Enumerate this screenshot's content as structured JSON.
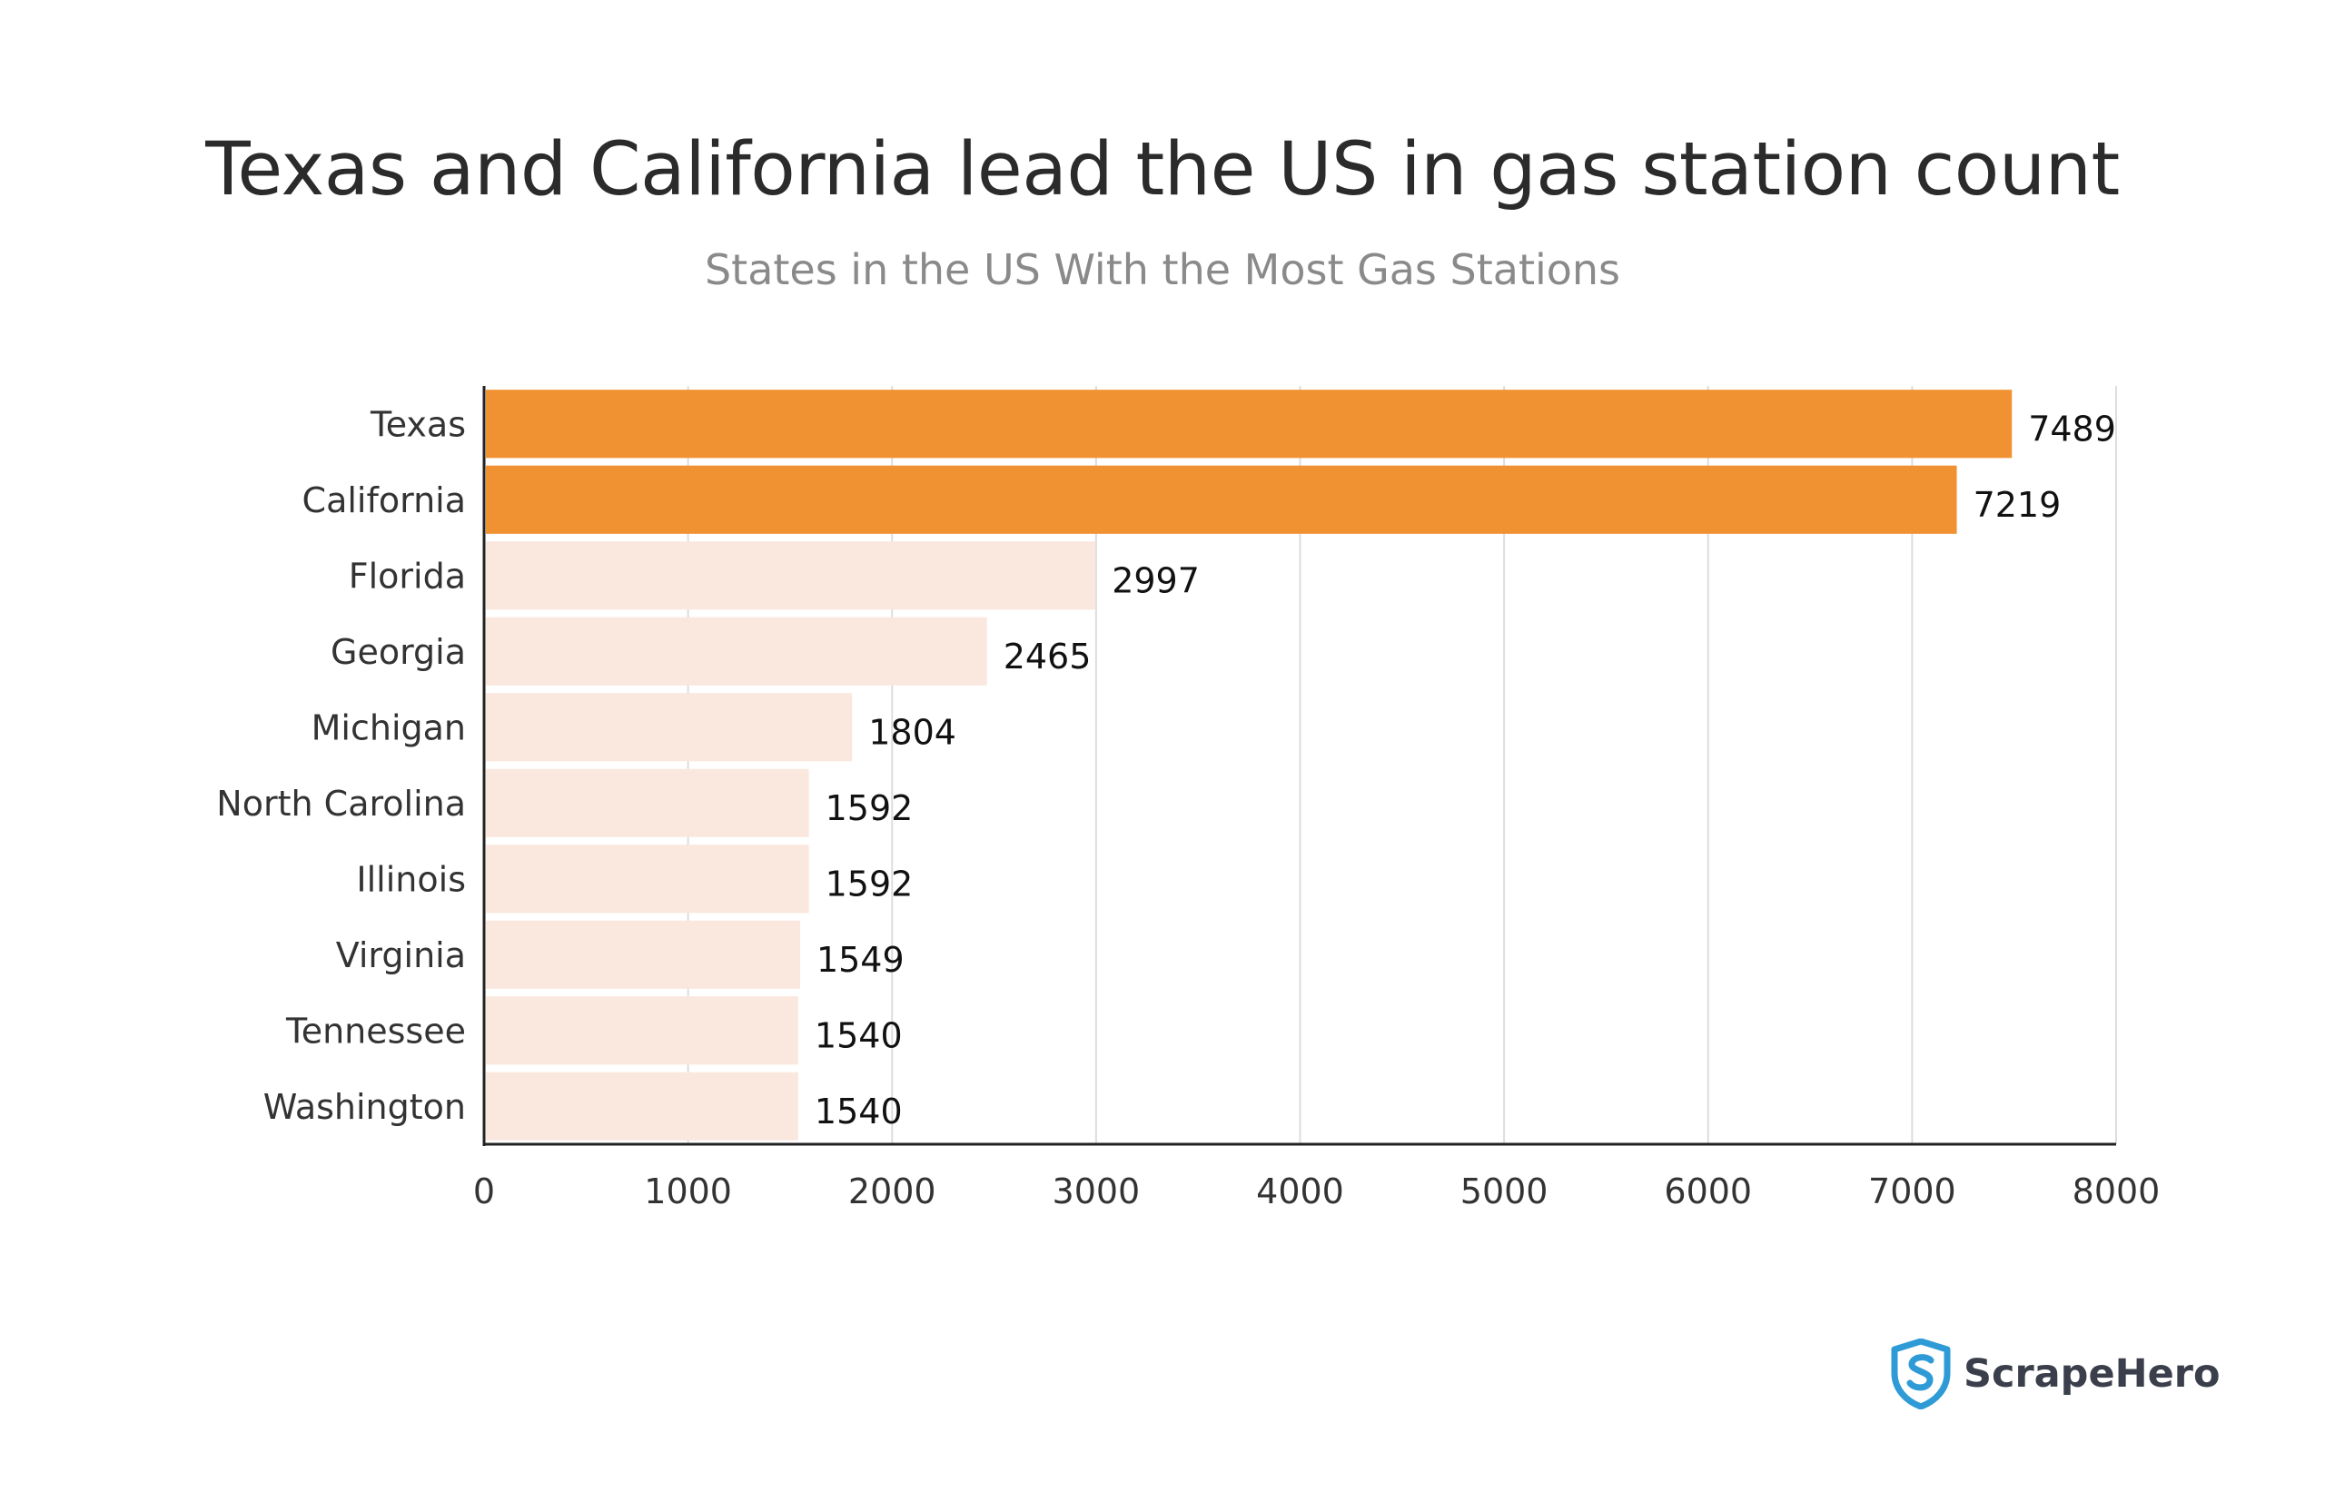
{
  "header": {
    "title": "Texas and California lead the US in gas station count",
    "subtitle": "States in the US With the Most Gas Stations"
  },
  "brand": {
    "name": "ScrapeHero",
    "icon": "shield-s-icon",
    "color": "#2f9bd6"
  },
  "colors": {
    "highlight": "#f09232",
    "base": "#fae8de",
    "grid": "#dddddd",
    "axis": "#222222"
  },
  "chart_data": {
    "type": "bar",
    "orientation": "horizontal",
    "title": "Texas and California lead the US in gas station count",
    "subtitle": "States in the US With the Most Gas Stations",
    "xlabel": "",
    "ylabel": "",
    "categories": [
      "Texas",
      "California",
      "Florida",
      "Georgia",
      "Michigan",
      "North Carolina",
      "Illinois",
      "Virginia",
      "Tennessee",
      "Washington"
    ],
    "values": [
      7489,
      7219,
      2997,
      2465,
      1804,
      1592,
      1592,
      1549,
      1540,
      1540
    ],
    "highlighted": [
      "Texas",
      "California"
    ],
    "xlim": [
      0,
      8000
    ],
    "xticks": [
      0,
      1000,
      2000,
      3000,
      4000,
      5000,
      6000,
      7000,
      8000
    ],
    "grid": "vertical",
    "data_labels": true
  }
}
